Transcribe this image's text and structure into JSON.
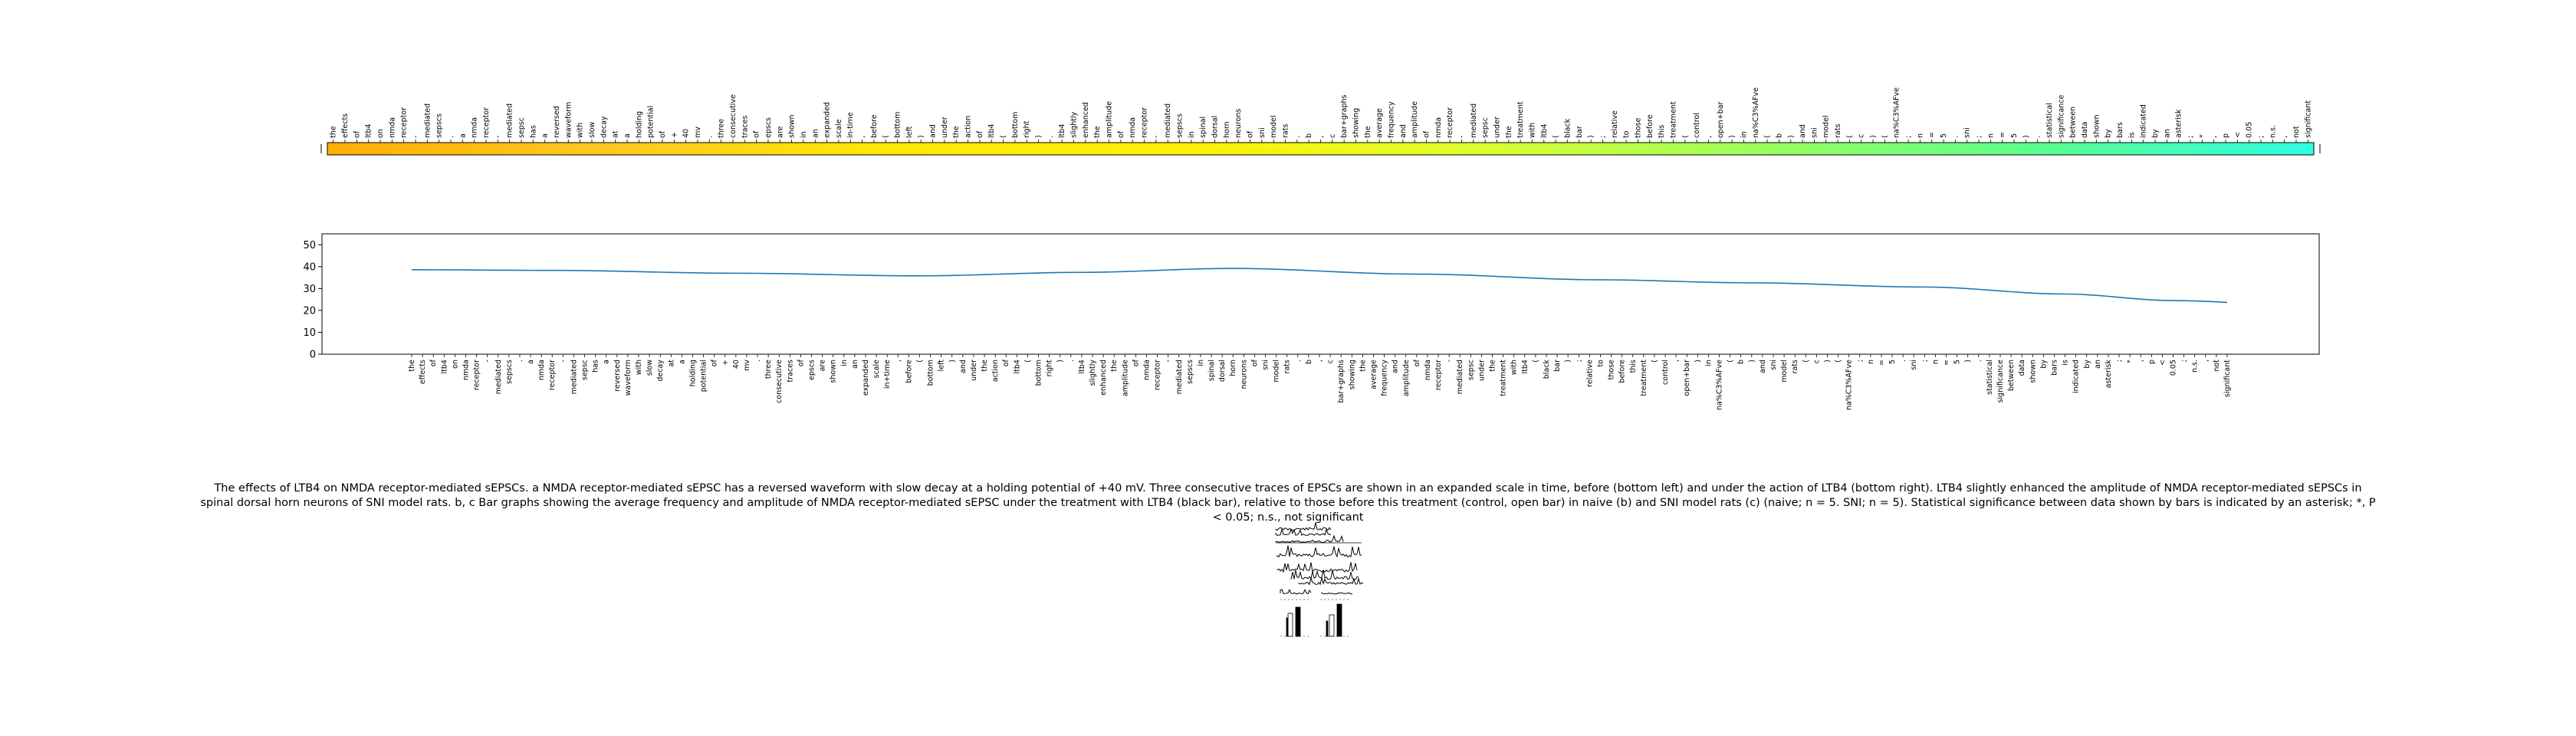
{
  "chart_data": [
    {
      "type": "heatmap",
      "tokens": [
        "the",
        "effects",
        "of",
        "ltb4",
        "on",
        "nmda",
        "receptor",
        "-",
        "mediated",
        "sepscs",
        ".",
        "a",
        "nmda",
        "receptor",
        "-",
        "mediated",
        "sepsc",
        "has",
        "a",
        "reversed",
        "waveform",
        "with",
        "slow",
        "decay",
        "at",
        "a",
        "holding",
        "potential",
        "of",
        "+",
        "40",
        "mv",
        ".",
        "three",
        "consecutive",
        "traces",
        "of",
        "epscs",
        "are",
        "shown",
        "in",
        "an",
        "expanded",
        "scale",
        "in-time",
        ",",
        "before",
        "(",
        "bottom",
        "left",
        ")",
        "and",
        "under",
        "the",
        "action",
        "of",
        "ltb4",
        "(",
        "bottom",
        "right",
        ")",
        ".",
        "ltb4",
        "slightly",
        "enhanced",
        "the",
        "amplitude",
        "of",
        "nmda",
        "receptor",
        "-",
        "mediated",
        "sepscs",
        "in",
        "spinal",
        "dorsal",
        "horn",
        "neurons",
        "of",
        "sni",
        "model",
        "rats",
        ".",
        "b",
        ",",
        "c",
        "bar+graphs",
        "showing",
        "the",
        "average",
        "frequency",
        "and",
        "amplitude",
        "of",
        "nmda",
        "receptor",
        "-",
        "mediated",
        "sepsc",
        "under",
        "the",
        "treatment",
        "with",
        "ltb4",
        "(",
        "black",
        "bar",
        ")",
        ";",
        "relative",
        "to",
        "those",
        "before",
        "this",
        "treatment",
        "(",
        "control",
        ",",
        "open+bar",
        ")",
        "in",
        "na%C3%AFve",
        "(",
        "b",
        ")",
        "and",
        "sni",
        "model",
        "rats",
        "(",
        "c",
        ")",
        "(",
        "na%C3%AFve",
        ";",
        "n",
        "=",
        "5",
        ".",
        "sni",
        ";",
        "n",
        "=",
        "5",
        ")",
        ".",
        "statistical",
        "significance",
        "between",
        "data",
        "shown",
        "by",
        "bars",
        "is",
        "indicated",
        "by",
        "an",
        "asterisk",
        ";",
        "*",
        ",",
        "p",
        "<",
        "0.05",
        ";",
        "n.s.",
        ",",
        "not",
        "significant"
      ],
      "color_stops": [
        "#ffb000",
        "#ffc81e",
        "#ffea00",
        "#fff000",
        "#e0ff2a",
        "#9eff5a",
        "#5cff8c",
        "#2dffe2"
      ]
    },
    {
      "type": "line",
      "x_tokens": [
        "the",
        "effects",
        "of",
        "ltb4",
        "on",
        "nmda",
        "receptor",
        "-",
        "mediated",
        "sepscs",
        ".",
        "a",
        "nmda",
        "receptor",
        "-",
        "mediated",
        "sepsc",
        "has",
        "a",
        "reversed",
        "waveform",
        "with",
        "slow",
        "decay",
        "at",
        "a",
        "holding",
        "potential",
        "of",
        "+",
        "40",
        "mv",
        ".",
        "three",
        "consecutive",
        "traces",
        "of",
        "epscs",
        "are",
        "shown",
        "in",
        "an",
        "expanded",
        "scale",
        "in+time",
        ",",
        "before",
        "(",
        "bottom",
        "left",
        ")",
        "and",
        "under",
        "the",
        "action",
        "of",
        "ltb4",
        "(",
        "bottom",
        "right",
        ")",
        ".",
        "ltb4",
        "slightly",
        "enhanced",
        "the",
        "amplitude",
        "of",
        "nmda",
        "receptor",
        "-",
        "mediated",
        "sepscs",
        "in",
        "spinal",
        "dorsal",
        "horn",
        "neurons",
        "of",
        "sni",
        "model",
        "rats",
        ".",
        "b",
        ",",
        "c",
        "bar+graphs",
        "showing",
        "the",
        "average",
        "frequency",
        "and",
        "amplitude",
        "of",
        "nmda",
        "receptor",
        "-",
        "mediated",
        "sepsc",
        "under",
        "the",
        "treatment",
        "with",
        "ltb4",
        "(",
        "black",
        "bar",
        ")",
        ";",
        "relative",
        "to",
        "those",
        "before",
        "this",
        "treatment",
        "(",
        "control",
        ",",
        "open+bar",
        ")",
        "in",
        "na%C3%AFve",
        "(",
        "b",
        ")",
        "and",
        "sni",
        "model",
        "rats",
        "(",
        "c",
        ")",
        "(",
        "na%C3%AFve",
        ";",
        "n",
        "=",
        "5",
        ".",
        "sni",
        ";",
        "n",
        "=",
        "5",
        ")",
        ".",
        "statistical",
        "significance",
        "between",
        "data",
        "shown",
        "by",
        "bars",
        "is",
        "indicated",
        "by",
        "an",
        "asterisk",
        ";",
        "*",
        ",",
        "p",
        "<",
        "0.05",
        ";",
        "n.s.",
        ",",
        "not",
        "significant"
      ],
      "anchors": [
        [
          0,
          38.6
        ],
        [
          13,
          38.3
        ],
        [
          30,
          37.0
        ],
        [
          47,
          35.8
        ],
        [
          62,
          37.4
        ],
        [
          76,
          39.2
        ],
        [
          93,
          36.6
        ],
        [
          110,
          34.0
        ],
        [
          124,
          32.6
        ],
        [
          140,
          30.7
        ],
        [
          153,
          27.5
        ],
        [
          163,
          24.5
        ],
        [
          175,
          22.3
        ],
        [
          183,
          21.7
        ]
      ],
      "ylim": [
        0,
        55
      ],
      "yticks": [
        0,
        10,
        20,
        30,
        40,
        50
      ],
      "line_color": "#1f77b4"
    }
  ],
  "caption": "The effects of LTB4 on NMDA receptor-mediated sEPSCs. a NMDA receptor-mediated sEPSC has a reversed waveform with slow decay at a holding potential of +40 mV. Three consecutive traces of EPSCs are shown in an expanded scale in time, before (bottom left) and under the action of LTB4 (bottom right). LTB4 slightly enhanced the amplitude of NMDA receptor-mediated sEPSCs in spinal dorsal horn neurons of SNI model rats. b, c Bar graphs showing the average frequency and amplitude of NMDA receptor-mediated sEPSC under the treatment with LTB4 (black bar), relative to those before this treatment (control, open bar) in naive (b) and SNI model rats (c) (naive; n = 5. SNI; n = 5). Statistical significance between data shown by bars is indicated by an asterisk; *, P < 0.05; n.s., not significant"
}
